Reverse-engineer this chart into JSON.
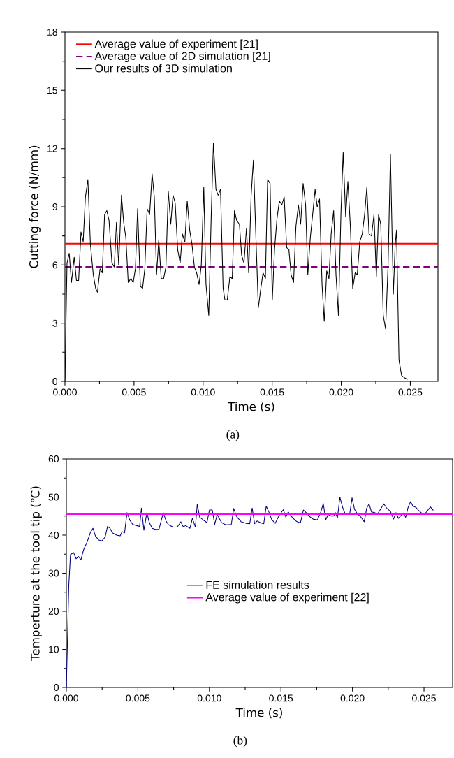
{
  "chart_data": [
    {
      "type": "line",
      "xlabel": "Time (s)",
      "ylabel": "Cutting force (N/mm)",
      "annotations": [
        "(a)"
      ],
      "xlim": [
        0,
        0.027
      ],
      "ylim": [
        0,
        18
      ],
      "xticks": [
        {
          "value": 0,
          "label": "0.000"
        },
        {
          "value": 0.005,
          "label": "0.005"
        },
        {
          "value": 0.01,
          "label": "0.010"
        },
        {
          "value": 0.015,
          "label": "0.015"
        },
        {
          "value": 0.02,
          "label": "0.020"
        },
        {
          "value": 0.025,
          "label": "0.025"
        }
      ],
      "yticks": [
        0,
        3,
        6,
        9,
        12,
        15,
        18
      ],
      "legend": "top left",
      "grid": false,
      "marker": "none",
      "ref_lines": [
        {
          "axis": "y",
          "value": 7.1,
          "label": "Average value of experiment [21]",
          "color": "#ff0000",
          "line_style": "solid"
        },
        {
          "axis": "y",
          "value": 5.9,
          "label": "Average value of 2D simulation [21]",
          "color": "#800080",
          "line_style": "dashed"
        }
      ],
      "series": [
        {
          "name": "Our results of 3D simulation",
          "color": "#000000",
          "x": [
            0,
            0.00015,
            0.00031,
            0.00047,
            0.00067,
            0.00083,
            0.00099,
            0.00116,
            0.00132,
            0.00148,
            0.00166,
            0.00184,
            0.00205,
            0.00222,
            0.00235,
            0.00254,
            0.0027,
            0.00287,
            0.00303,
            0.00319,
            0.0034,
            0.00357,
            0.00373,
            0.00389,
            0.00409,
            0.00425,
            0.00441,
            0.00458,
            0.00477,
            0.00494,
            0.0051,
            0.00526,
            0.00546,
            0.00562,
            0.00578,
            0.00595,
            0.00613,
            0.00631,
            0.00647,
            0.00663,
            0.00679,
            0.00697,
            0.00714,
            0.00731,
            0.00748,
            0.00766,
            0.00782,
            0.00798,
            0.00816,
            0.00834,
            0.0085,
            0.00868,
            0.00885,
            0.00903,
            0.00919,
            0.00937,
            0.00953,
            0.00971,
            0.00987,
            0.01005,
            0.01021,
            0.01041,
            0.01059,
            0.01075,
            0.01093,
            0.01109,
            0.01126,
            0.01145,
            0.01158,
            0.01175,
            0.01194,
            0.01211,
            0.01227,
            0.01243,
            0.01263,
            0.01279,
            0.01296,
            0.01314,
            0.0133,
            0.01348,
            0.01364,
            0.01381,
            0.014,
            0.01416,
            0.01434,
            0.01451,
            0.01467,
            0.01485,
            0.01501,
            0.01517,
            0.01535,
            0.01552,
            0.0157,
            0.01587,
            0.01605,
            0.01621,
            0.01637,
            0.01655,
            0.01672,
            0.0169,
            0.01706,
            0.01724,
            0.01742,
            0.01758,
            0.01776,
            0.01793,
            0.01811,
            0.01826,
            0.01843,
            0.01861,
            0.01877,
            0.01895,
            0.01911,
            0.01927,
            0.01945,
            0.01962,
            0.0198,
            0.01998,
            0.02014,
            0.02032,
            0.02048,
            0.02066,
            0.02083,
            0.02101,
            0.02116,
            0.02134,
            0.02152,
            0.02169,
            0.02185,
            0.02201,
            0.02219,
            0.02237,
            0.02254,
            0.0227,
            0.02286,
            0.02304,
            0.02321,
            0.02339,
            0.02356,
            0.02377,
            0.0239,
            0.024,
            0.02418,
            0.02437,
            0.02455,
            0.0248
          ],
          "values": [
            0,
            6.1,
            6.6,
            5.1,
            6.4,
            5.2,
            5.2,
            7.7,
            7.2,
            9.5,
            10.4,
            7.1,
            5.5,
            4.8,
            4.6,
            5.8,
            5.6,
            8.6,
            8.8,
            8.3,
            6.1,
            5.9,
            8.2,
            6.0,
            9.6,
            8.2,
            7.4,
            5.1,
            5.3,
            5.1,
            5.8,
            8.9,
            4.9,
            4.8,
            5.8,
            8.9,
            8.6,
            10.7,
            9.5,
            5.5,
            7.3,
            5.3,
            5.3,
            5.9,
            9.8,
            8.1,
            9.6,
            9.2,
            6.8,
            6.1,
            7.6,
            7.2,
            9.3,
            7.8,
            7.1,
            5.9,
            5.6,
            5.0,
            6.0,
            10.0,
            5.0,
            3.4,
            8.6,
            12.3,
            9.9,
            9.6,
            9.9,
            4.8,
            4.2,
            4.2,
            5.4,
            5.3,
            8.8,
            8.3,
            8.1,
            6.5,
            6.1,
            7.9,
            5.6,
            9.6,
            11.4,
            7.7,
            3.8,
            4.7,
            5.6,
            5.3,
            10.4,
            10.2,
            4.2,
            6.8,
            8.4,
            9.3,
            9.1,
            9.5,
            6.9,
            6.8,
            5.5,
            5.1,
            8.0,
            9.1,
            8.1,
            10.2,
            9.1,
            5.5,
            7.4,
            8.6,
            9.9,
            9.0,
            9.4,
            5.0,
            3.1,
            5.7,
            5.3,
            7.6,
            8.8,
            5.5,
            3.4,
            8.7,
            11.8,
            8.5,
            10.3,
            8.0,
            4.8,
            5.6,
            5.5,
            7.2,
            7.6,
            8.6,
            10.0,
            7.6,
            7.5,
            8.6,
            5.4,
            8.6,
            8.1,
            3.4,
            2.7,
            6.0,
            11.7,
            4.5,
            7.0,
            7.8,
            1.1,
            0.3,
            0.2,
            0.1
          ]
        }
      ]
    },
    {
      "type": "line",
      "xlabel": "Time (s)",
      "ylabel": "Temperture at the tool tip (℃)",
      "annotations": [
        "(b)"
      ],
      "xlim": [
        0,
        0.027
      ],
      "ylim": [
        0,
        60
      ],
      "xticks": [
        {
          "value": 0,
          "label": "0.000"
        },
        {
          "value": 0.005,
          "label": "0.005"
        },
        {
          "value": 0.01,
          "label": "0.010"
        },
        {
          "value": 0.015,
          "label": "0.015"
        },
        {
          "value": 0.02,
          "label": "0.020"
        },
        {
          "value": 0.025,
          "label": "0.025"
        }
      ],
      "yticks": [
        0,
        10,
        20,
        30,
        40,
        50,
        60
      ],
      "legend": "center",
      "grid": false,
      "marker": "none",
      "ref_lines": [
        {
          "axis": "y",
          "value": 45.5,
          "label": "Average value of experiment [22]",
          "color": "#ff00ff",
          "line_style": "solid"
        }
      ],
      "series": [
        {
          "name": "FE simulation results",
          "color": "#000080",
          "x": [
            0,
            0.00017,
            0.00029,
            0.00051,
            0.00068,
            0.00085,
            0.00102,
            0.00119,
            0.00147,
            0.00169,
            0.00186,
            0.00203,
            0.00227,
            0.00249,
            0.00271,
            0.00288,
            0.00305,
            0.00322,
            0.00351,
            0.00376,
            0.0039,
            0.00407,
            0.00424,
            0.00444,
            0.00464,
            0.00492,
            0.00512,
            0.00525,
            0.00542,
            0.00563,
            0.0058,
            0.006,
            0.00622,
            0.00647,
            0.00678,
            0.00698,
            0.00715,
            0.00746,
            0.00775,
            0.008,
            0.00817,
            0.00834,
            0.00864,
            0.00881,
            0.00902,
            0.00915,
            0.00932,
            0.00956,
            0.00983,
            0.01,
            0.0102,
            0.01037,
            0.01054,
            0.01085,
            0.01114,
            0.01153,
            0.0117,
            0.0119,
            0.01222,
            0.01256,
            0.01282,
            0.01299,
            0.01316,
            0.01333,
            0.01359,
            0.0138,
            0.01397,
            0.01418,
            0.01435,
            0.0146,
            0.01486,
            0.01517,
            0.01534,
            0.01551,
            0.0158,
            0.01609,
            0.01636,
            0.01657,
            0.01677,
            0.01699,
            0.01725,
            0.01755,
            0.0178,
            0.01796,
            0.01813,
            0.0183,
            0.01852,
            0.01869,
            0.01881,
            0.01895,
            0.01912,
            0.01932,
            0.01949,
            0.0198,
            0.01997,
            0.02014,
            0.02035,
            0.02062,
            0.02082,
            0.02099,
            0.02116,
            0.02133,
            0.02154,
            0.02176,
            0.02193,
            0.02219,
            0.02239,
            0.02266,
            0.02287,
            0.02304,
            0.02321,
            0.02355,
            0.02372,
            0.02389,
            0.02406,
            0.02423,
            0.02443,
            0.0246,
            0.02483,
            0.02505,
            0.02545,
            0.02565
          ],
          "values": [
            0,
            26.7,
            34.9,
            35.4,
            33.8,
            34.4,
            33.5,
            36.0,
            38.4,
            40.8,
            41.8,
            39.8,
            38.7,
            38.5,
            39.5,
            42.3,
            41.8,
            40.6,
            40.0,
            39.8,
            40.9,
            40.6,
            45.9,
            43.9,
            42.8,
            42.5,
            42.3,
            47.1,
            41.3,
            45.9,
            43.3,
            41.8,
            41.5,
            41.5,
            45.9,
            43.6,
            42.7,
            42.1,
            42.1,
            43.5,
            42.2,
            42.5,
            41.8,
            44.4,
            42.1,
            48.1,
            44.7,
            44.0,
            43.3,
            46.6,
            46.6,
            42.8,
            45.4,
            43.3,
            42.7,
            42.8,
            47.0,
            44.9,
            43.5,
            43.1,
            43.0,
            47.1,
            43.0,
            43.7,
            43.2,
            43.0,
            47.6,
            45.9,
            44.1,
            43.1,
            45.1,
            46.7,
            44.7,
            46.1,
            44.6,
            43.6,
            43.2,
            46.6,
            45.9,
            44.9,
            44.2,
            44.0,
            46.2,
            48.3,
            44.0,
            45.4,
            45.0,
            45.0,
            45.9,
            44.5,
            50.0,
            47.2,
            45.6,
            45.4,
            49.8,
            46.8,
            45.6,
            44.6,
            43.5,
            47.0,
            48.2,
            46.1,
            45.9,
            45.6,
            46.6,
            48.2,
            47.1,
            46.2,
            44.2,
            45.9,
            44.4,
            45.8,
            44.7,
            47.3,
            48.8,
            47.6,
            47.3,
            46.6,
            45.8,
            45.5,
            47.4,
            46.5
          ]
        }
      ]
    }
  ]
}
